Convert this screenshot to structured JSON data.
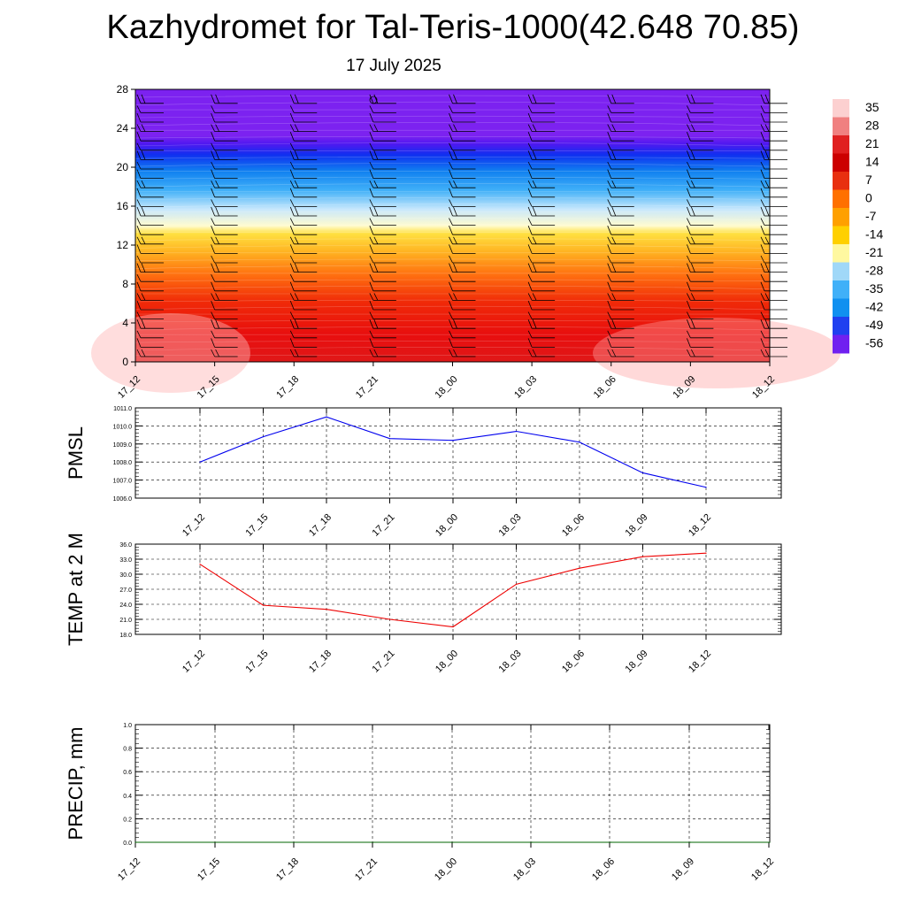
{
  "title": "Kazhydromet for Tal-Teris-1000(42.648 70.85)",
  "subtitle": "17 July 2025",
  "colors": {
    "pmsl_line": "#0000ee",
    "temp_line": "#ee0000",
    "precip_line": "#006400",
    "wind_barb": "#000000"
  },
  "chart_data": [
    {
      "type": "heatmap",
      "name": "cross-section",
      "x_ticks": [
        "17_12",
        "17_15",
        "17_18",
        "17_21",
        "18_00",
        "18_03",
        "18_06",
        "18_09",
        "18_12"
      ],
      "y_ticks": [
        "0",
        "4",
        "8",
        "12",
        "16",
        "20",
        "24",
        "28"
      ],
      "ylim": [
        0,
        28
      ],
      "colorbar": {
        "labels": [
          "35",
          "28",
          "21",
          "14",
          "7",
          "0",
          "-7",
          "-14",
          "-21",
          "-28",
          "-35",
          "-42",
          "-49",
          "-56"
        ],
        "colors": [
          "#fcd0d0",
          "#f08080",
          "#e02020",
          "#cc0000",
          "#e83010",
          "#ff7000",
          "#ffa000",
          "#ffd000",
          "#fff8a0",
          "#a0d8f8",
          "#40b0f8",
          "#1090f0",
          "#2040f0",
          "#7020f0"
        ]
      },
      "wind_barbs": true
    },
    {
      "type": "line",
      "name": "pmsl",
      "ylabel": "PMSL",
      "x": [
        "17_12",
        "17_15",
        "17_18",
        "17_21",
        "18_00",
        "18_03",
        "18_06",
        "18_09",
        "18_12"
      ],
      "values": [
        1008.0,
        1009.4,
        1010.5,
        1009.3,
        1009.2,
        1009.7,
        1009.1,
        1007.4,
        1006.6
      ],
      "ylim": [
        1006.0,
        1011.0
      ],
      "y_ticks": [
        "1006.0",
        "1007.0",
        "1008.0",
        "1009.0",
        "1010.0",
        "1011.0"
      ],
      "grid": true
    },
    {
      "type": "line",
      "name": "temp",
      "ylabel": "TEMP at 2 M",
      "x": [
        "17_12",
        "17_15",
        "17_18",
        "17_21",
        "18_00",
        "18_03",
        "18_06",
        "18_09",
        "18_12"
      ],
      "values": [
        32.0,
        23.8,
        23.0,
        21.0,
        19.5,
        28.0,
        31.2,
        33.5,
        34.2
      ],
      "ylim": [
        18.0,
        36.0
      ],
      "y_ticks": [
        "18.0",
        "21.0",
        "24.0",
        "27.0",
        "30.0",
        "33.0",
        "36.0"
      ],
      "grid": true
    },
    {
      "type": "line",
      "name": "precip",
      "ylabel": "PRECIP, mm",
      "x": [
        "17_12",
        "17_15",
        "17_18",
        "17_21",
        "18_00",
        "18_03",
        "18_06",
        "18_09",
        "18_12"
      ],
      "values": [
        0,
        0,
        0,
        0,
        0,
        0,
        0,
        0,
        0
      ],
      "ylim": [
        0.0,
        1.0
      ],
      "y_ticks": [
        "0.0",
        "0.2",
        "0.4",
        "0.6",
        "0.8",
        "1.0"
      ],
      "grid": true
    }
  ]
}
